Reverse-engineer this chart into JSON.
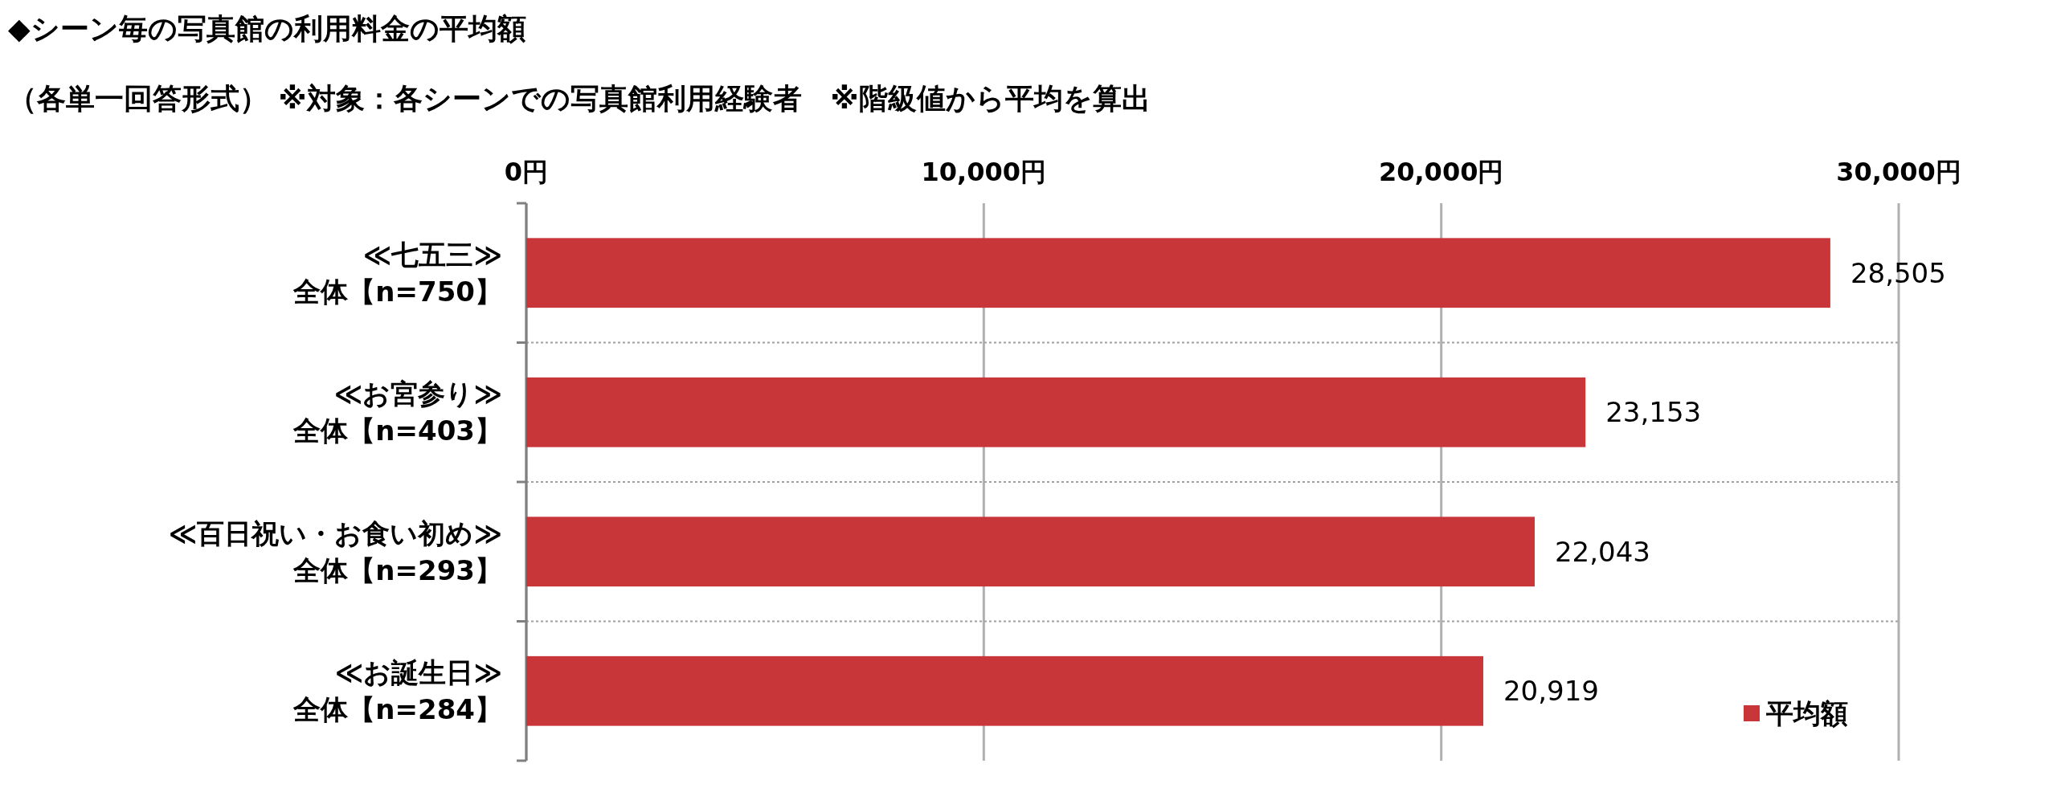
{
  "chart_data": {
    "type": "bar",
    "orientation": "horizontal",
    "title": "◆シーン毎の写真館の利用料金の平均額",
    "subtitle": "（各単一回答形式） ※対象：各シーンでの写真館利用経験者　※階級値から平均を算出",
    "categories": [
      "≪七五三≫\n全体【n=750】",
      "≪お宮参り≫\n全体【n=403】",
      "≪百日祝い・お食い初め≫\n全体【n=293】",
      "≪お誕生日≫\n全体【n=284】"
    ],
    "series": [
      {
        "name": "平均額",
        "color": "#c8363a",
        "values": [
          28505,
          23153,
          22043,
          20919
        ],
        "value_labels": [
          "28,505",
          "23,153",
          "22,043",
          "20,919"
        ]
      }
    ],
    "xlim": [
      0,
      30000
    ],
    "xticks": [
      {
        "value": 0,
        "label": "0円"
      },
      {
        "value": 10000,
        "label": "10,000円"
      },
      {
        "value": 20000,
        "label": "20,000円"
      },
      {
        "value": 30000,
        "label": "30,000円"
      }
    ],
    "grid": true,
    "legend": "bottom right"
  }
}
